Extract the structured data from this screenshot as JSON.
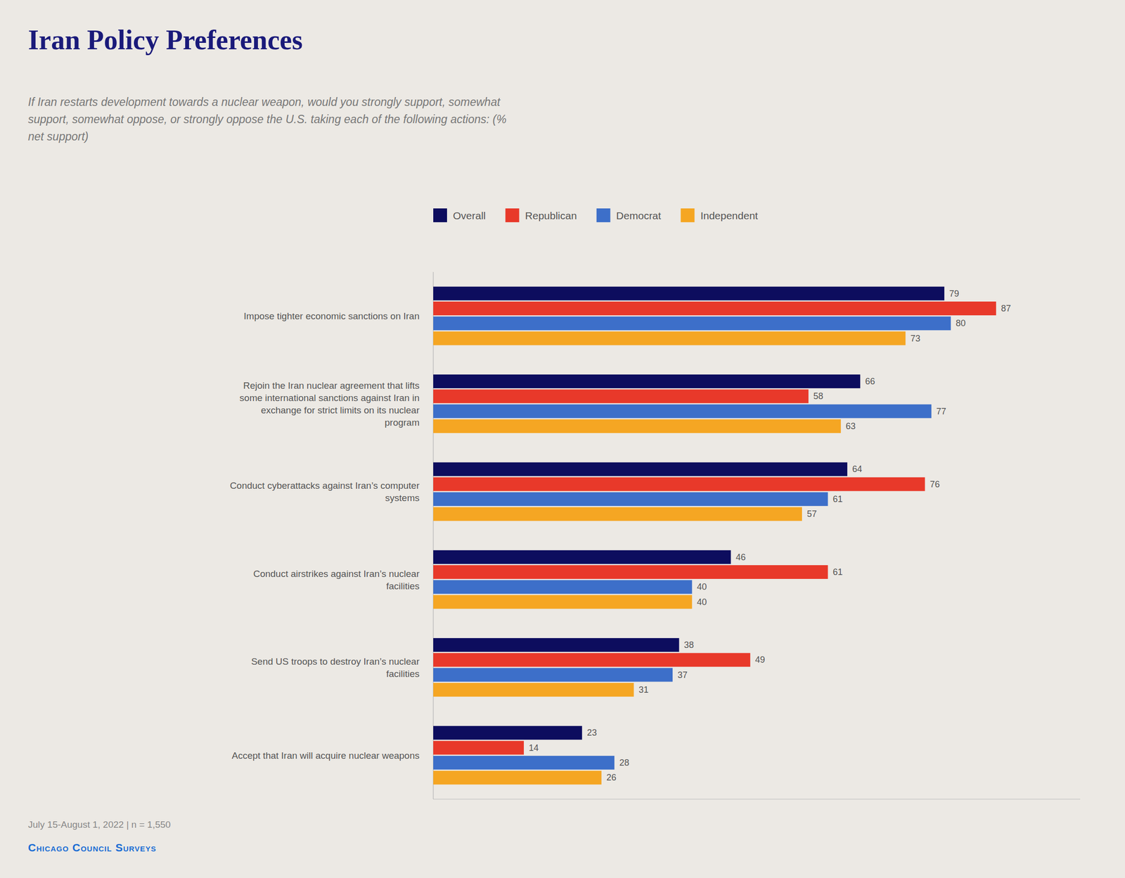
{
  "chart_data": {
    "type": "bar",
    "orientation": "horizontal",
    "title": "Iran Policy Preferences",
    "subtitle": "If Iran restarts development towards a nuclear weapon, would you strongly support, somewhat\nsupport, somewhat oppose, or strongly oppose the U.S. taking each of the following actions: (%\nnet support)",
    "footnote": "July 15-August 1, 2022  |  n = 1,550",
    "source": "Chicago Council Surveys",
    "categories": [
      "Impose tighter economic sanctions on Iran",
      "Rejoin the Iran nuclear agreement that lifts\nsome international sanctions against Iran in\nexchange for strict limits on its nuclear\nprogram",
      "Conduct cyberattacks against Iran’s computer\nsystems",
      "Conduct airstrikes against Iran’s nuclear\nfacilities",
      "Send US troops to destroy Iran’s nuclear\nfacilities",
      "Accept that Iran will acquire nuclear weapons"
    ],
    "series": [
      {
        "name": "Overall",
        "color": "#0d0d5e",
        "values": [
          79,
          66,
          64,
          46,
          38,
          23
        ]
      },
      {
        "name": "Republican",
        "color": "#e8392a",
        "values": [
          87,
          58,
          76,
          61,
          49,
          14
        ]
      },
      {
        "name": "Democrat",
        "color": "#3d6fc9",
        "values": [
          80,
          77,
          61,
          40,
          37,
          28
        ]
      },
      {
        "name": "Independent",
        "color": "#f5a623",
        "values": [
          73,
          63,
          57,
          40,
          31,
          26
        ]
      }
    ],
    "xlim": [
      0,
      100
    ],
    "xticks": [],
    "tick_labels": false,
    "grid": false,
    "legend": "top-left",
    "data_labels": true
  }
}
